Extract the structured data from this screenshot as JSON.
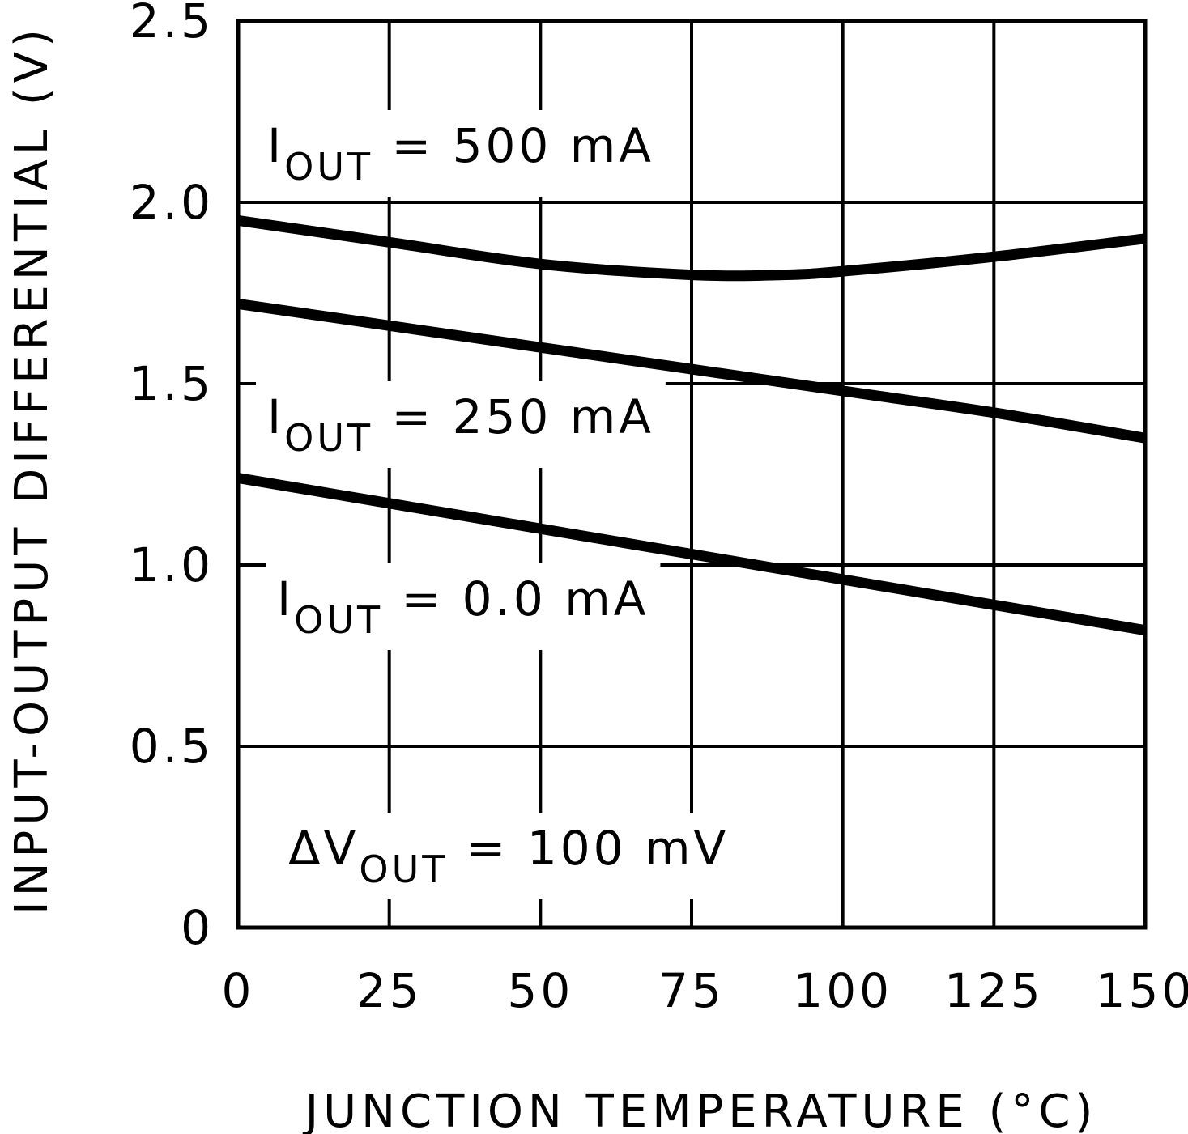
{
  "chart_data": {
    "type": "line",
    "title": "",
    "xlabel": "JUNCTION TEMPERATURE (°C)",
    "ylabel": "INPUT-OUTPUT DIFFERENTIAL (V)",
    "xlim": [
      0,
      150
    ],
    "ylim": [
      0,
      2.5
    ],
    "x_ticks": [
      0,
      25,
      50,
      75,
      100,
      125,
      150
    ],
    "y_ticks": [
      0,
      0.5,
      1.0,
      1.5,
      2.0,
      2.5
    ],
    "x_tick_labels": [
      "0",
      "25",
      "50",
      "75",
      "100",
      "125",
      "150"
    ],
    "y_tick_labels": [
      "0",
      "0.5",
      "1.0",
      "1.5",
      "2.0",
      "2.5"
    ],
    "grid": true,
    "series": [
      {
        "name": "IOUT = 500 mA",
        "label_main": "I",
        "label_sub": "OUT",
        "label_rest": " = 500 mA",
        "x": [
          0,
          25,
          50,
          75,
          90,
          100,
          125,
          150
        ],
        "values": [
          1.95,
          1.89,
          1.83,
          1.8,
          1.8,
          1.81,
          1.85,
          1.9
        ]
      },
      {
        "name": "IOUT = 250 mA",
        "label_main": "I",
        "label_sub": "OUT",
        "label_rest": " = 250 mA",
        "x": [
          0,
          25,
          50,
          75,
          100,
          125,
          150
        ],
        "values": [
          1.72,
          1.66,
          1.6,
          1.54,
          1.48,
          1.42,
          1.35
        ]
      },
      {
        "name": "IOUT = 0.0 mA",
        "label_main": "I",
        "label_sub": "OUT",
        "label_rest": " = 0.0 mA",
        "x": [
          0,
          25,
          50,
          75,
          100,
          125,
          150
        ],
        "values": [
          1.24,
          1.17,
          1.1,
          1.03,
          0.96,
          0.89,
          0.82
        ]
      }
    ],
    "annotation": {
      "main": "ΔV",
      "sub": "OUT",
      "rest": " = 100 mV"
    }
  }
}
